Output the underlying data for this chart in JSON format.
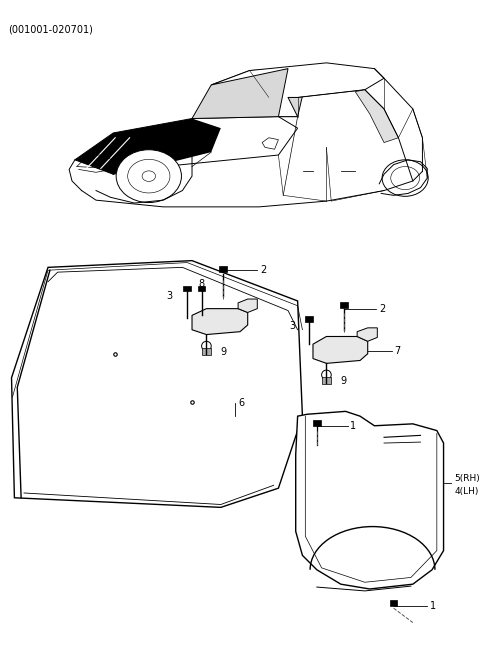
{
  "subtitle": "(001001-020701)",
  "background_color": "#ffffff",
  "line_color": "#000000",
  "gray_color": "#555555",
  "fig_width": 4.8,
  "fig_height": 6.48,
  "dpi": 100
}
